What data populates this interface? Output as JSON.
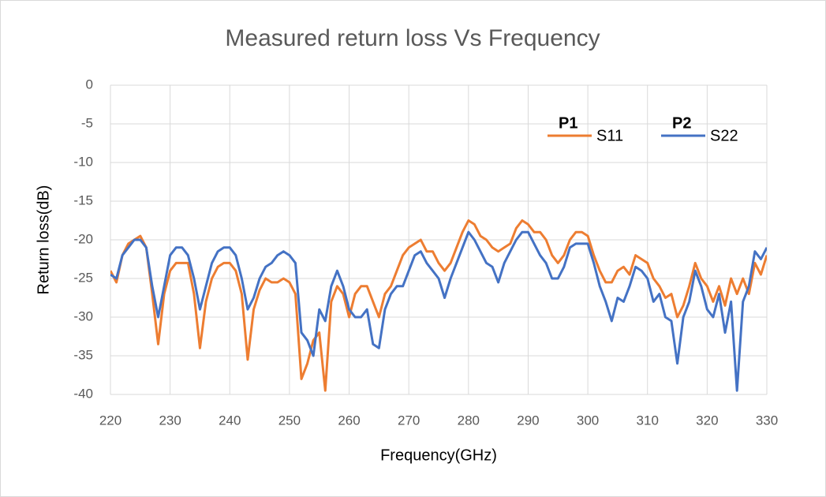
{
  "chart_data": {
    "type": "line",
    "title": "Measured return loss Vs Frequency",
    "xlabel": "Frequency(GHz)",
    "ylabel": "Return loss(dB)",
    "xlim": [
      220,
      330
    ],
    "ylim": [
      -40,
      0
    ],
    "xticks": [
      220,
      230,
      240,
      250,
      260,
      270,
      280,
      290,
      300,
      310,
      320,
      330
    ],
    "yticks": [
      0,
      -5,
      -10,
      -15,
      -20,
      -25,
      -30,
      -35,
      -40
    ],
    "grid": true,
    "x": [
      220,
      221,
      222,
      223,
      224,
      225,
      226,
      227,
      228,
      229,
      230,
      231,
      232,
      233,
      234,
      235,
      236,
      237,
      238,
      239,
      240,
      241,
      242,
      243,
      244,
      245,
      246,
      247,
      248,
      249,
      250,
      251,
      252,
      253,
      254,
      255,
      256,
      257,
      258,
      259,
      260,
      261,
      262,
      263,
      264,
      265,
      266,
      267,
      268,
      269,
      270,
      271,
      272,
      273,
      274,
      275,
      276,
      277,
      278,
      279,
      280,
      281,
      282,
      283,
      284,
      285,
      286,
      287,
      288,
      289,
      290,
      291,
      292,
      293,
      294,
      295,
      296,
      297,
      298,
      299,
      300,
      301,
      302,
      303,
      304,
      305,
      306,
      307,
      308,
      309,
      310,
      311,
      312,
      313,
      314,
      315,
      316,
      317,
      318,
      319,
      320,
      321,
      322,
      323,
      324,
      325,
      326,
      327,
      328,
      329,
      330
    ],
    "series": [
      {
        "name": "S11",
        "label": "P1",
        "color": "#ed7d31",
        "values": [
          -24,
          -25.5,
          -22,
          -20.5,
          -20,
          -19.5,
          -21,
          -27,
          -33.5,
          -27,
          -24,
          -23,
          -23,
          -23,
          -27,
          -34,
          -28,
          -25,
          -23.5,
          -23,
          -23,
          -24,
          -27,
          -35.5,
          -29,
          -26.5,
          -25,
          -25.5,
          -25.5,
          -25,
          -25.5,
          -27,
          -38,
          -36,
          -33,
          -32,
          -39.5,
          -28,
          -26,
          -27,
          -30,
          -27,
          -26,
          -26,
          -28,
          -30,
          -27,
          -26,
          -24,
          -22,
          -21,
          -20.5,
          -20,
          -21.5,
          -21.5,
          -23,
          -24,
          -23,
          -21,
          -19,
          -17.5,
          -18,
          -19.5,
          -20,
          -21,
          -21.5,
          -21,
          -20.5,
          -18.5,
          -17.5,
          -18,
          -19,
          -19,
          -20,
          -22,
          -23,
          -22,
          -20,
          -19,
          -19,
          -19.5,
          -22,
          -24,
          -25.5,
          -25.5,
          -24,
          -23.5,
          -24.5,
          -22,
          -22.5,
          -23,
          -25,
          -26,
          -27.5,
          -27,
          -30,
          -28.5,
          -26,
          -23,
          -25,
          -26,
          -28,
          -26,
          -28.5,
          -25,
          -27,
          -25,
          -27,
          -23,
          -24.5,
          -22
        ]
      },
      {
        "name": "S22",
        "label": "P2",
        "color": "#4472c4",
        "values": [
          -24.5,
          -25,
          -22,
          -21,
          -20,
          -20,
          -21,
          -26,
          -30,
          -26,
          -22,
          -21,
          -21,
          -22,
          -25,
          -29,
          -26,
          -23,
          -21.5,
          -21,
          -21,
          -22,
          -25,
          -29,
          -27.5,
          -25,
          -23.5,
          -23,
          -22,
          -21.5,
          -22,
          -23,
          -32,
          -33,
          -35,
          -29,
          -30.5,
          -26,
          -24,
          -26,
          -29,
          -30,
          -30,
          -29,
          -33.5,
          -34,
          -29,
          -27,
          -26,
          -26,
          -24,
          -22,
          -21.5,
          -23,
          -24,
          -25,
          -27.5,
          -25,
          -23,
          -21,
          -19,
          -20,
          -21.5,
          -23,
          -23.5,
          -25.5,
          -23,
          -21.5,
          -20,
          -19,
          -19,
          -20.5,
          -22,
          -23,
          -25,
          -25,
          -23.5,
          -21,
          -20.5,
          -20.5,
          -20.5,
          -23,
          -26,
          -28,
          -30.5,
          -27.5,
          -28,
          -26,
          -23.5,
          -24,
          -25,
          -28,
          -27,
          -30,
          -30.5,
          -36,
          -30,
          -28,
          -24,
          -26,
          -29,
          -30,
          -27,
          -32,
          -28,
          -39.5,
          -28,
          -26,
          -21.5,
          -22.5,
          -21
        ]
      }
    ]
  }
}
